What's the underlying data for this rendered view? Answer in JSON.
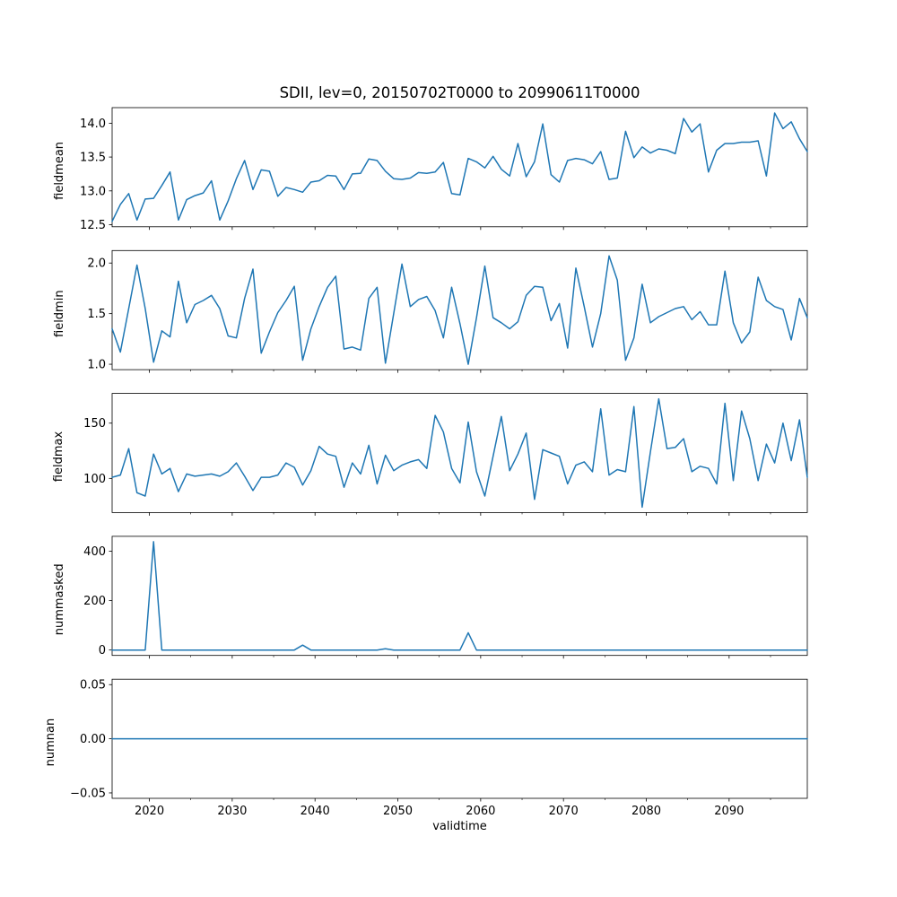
{
  "title": "SDII, lev=0, 20150702T0000 to 20990611T0000",
  "xlabel": "validtime",
  "line_color": "#1f77b4",
  "axis_color": "#000000",
  "background_color": "#ffffff",
  "xlim": [
    2015.5,
    2099.44
  ],
  "x_major_tick_values": [
    2020,
    2030,
    2040,
    2050,
    2060,
    2070,
    2080,
    2090
  ],
  "x_major_tick_labels": [
    "2020",
    "2030",
    "2040",
    "2050",
    "2060",
    "2070",
    "2080",
    "2090"
  ],
  "x_minor_tick_values": [
    2025,
    2035,
    2045,
    2055,
    2065,
    2075,
    2085,
    2095
  ],
  "x": [
    2015.5,
    2016.5,
    2017.5,
    2018.5,
    2019.5,
    2020.5,
    2021.5,
    2022.5,
    2023.5,
    2024.5,
    2025.5,
    2026.5,
    2027.5,
    2028.5,
    2029.5,
    2030.5,
    2031.5,
    2032.5,
    2033.5,
    2034.5,
    2035.5,
    2036.5,
    2037.5,
    2038.5,
    2039.5,
    2040.5,
    2041.5,
    2042.5,
    2043.5,
    2044.5,
    2045.5,
    2046.5,
    2047.5,
    2048.5,
    2049.5,
    2050.5,
    2051.5,
    2052.5,
    2053.5,
    2054.5,
    2055.5,
    2056.5,
    2057.5,
    2058.5,
    2059.5,
    2060.5,
    2061.5,
    2062.5,
    2063.5,
    2064.5,
    2065.5,
    2066.5,
    2067.5,
    2068.5,
    2069.5,
    2070.5,
    2071.5,
    2072.5,
    2073.5,
    2074.5,
    2075.5,
    2076.5,
    2077.5,
    2078.5,
    2079.5,
    2080.5,
    2081.5,
    2082.5,
    2083.5,
    2084.5,
    2085.5,
    2086.5,
    2087.5,
    2088.5,
    2089.5,
    2090.5,
    2091.5,
    2092.5,
    2093.5,
    2094.5,
    2095.5,
    2096.5,
    2097.5,
    2098.5,
    2099.44
  ],
  "chart_data": [
    {
      "type": "line",
      "ylabel": "fieldmean",
      "ytick_values": [
        12.5,
        13.0,
        13.5,
        14.0
      ],
      "ytick_labels": [
        "12.5",
        "13.0",
        "13.5",
        "14.0"
      ],
      "values": [
        12.55,
        12.8,
        12.96,
        12.57,
        12.88,
        12.89,
        13.08,
        13.28,
        12.57,
        12.87,
        12.93,
        12.97,
        13.15,
        12.57,
        12.85,
        13.18,
        13.45,
        13.02,
        13.31,
        13.29,
        12.92,
        13.05,
        13.02,
        12.98,
        13.13,
        13.15,
        13.23,
        13.22,
        13.02,
        13.25,
        13.26,
        13.47,
        13.45,
        13.29,
        13.18,
        13.17,
        13.19,
        13.27,
        13.26,
        13.28,
        13.42,
        12.96,
        12.94,
        13.48,
        13.43,
        13.34,
        13.51,
        13.32,
        13.22,
        13.7,
        13.21,
        13.43,
        13.99,
        13.24,
        13.13,
        13.45,
        13.48,
        13.46,
        13.4,
        13.58,
        13.17,
        13.19,
        13.88,
        13.49,
        13.65,
        13.56,
        13.62,
        13.6,
        13.55,
        14.07,
        13.87,
        13.99,
        13.28,
        13.6,
        13.7,
        13.7,
        13.72,
        13.72,
        13.74,
        13.22,
        14.15,
        13.92,
        14.02,
        13.77,
        13.58
      ]
    },
    {
      "type": "line",
      "ylabel": "fieldmin",
      "ytick_values": [
        1.0,
        1.5,
        2.0
      ],
      "ytick_labels": [
        "1.0",
        "1.5",
        "2.0"
      ],
      "values": [
        1.35,
        1.12,
        1.55,
        1.98,
        1.55,
        1.02,
        1.33,
        1.27,
        1.82,
        1.41,
        1.59,
        1.63,
        1.68,
        1.55,
        1.28,
        1.26,
        1.65,
        1.94,
        1.11,
        1.32,
        1.51,
        1.63,
        1.77,
        1.04,
        1.35,
        1.57,
        1.76,
        1.87,
        1.15,
        1.17,
        1.14,
        1.65,
        1.76,
        1.01,
        1.5,
        1.99,
        1.57,
        1.64,
        1.67,
        1.53,
        1.26,
        1.76,
        1.4,
        1.0,
        1.46,
        1.97,
        1.46,
        1.41,
        1.35,
        1.42,
        1.68,
        1.77,
        1.76,
        1.43,
        1.6,
        1.16,
        1.95,
        1.57,
        1.17,
        1.5,
        2.07,
        1.83,
        1.04,
        1.26,
        1.79,
        1.41,
        1.47,
        1.51,
        1.55,
        1.57,
        1.44,
        1.52,
        1.39,
        1.39,
        1.92,
        1.41,
        1.21,
        1.32,
        1.86,
        1.63,
        1.57,
        1.54,
        1.24,
        1.65,
        1.46
      ]
    },
    {
      "type": "line",
      "ylabel": "fieldmax",
      "ytick_values": [
        100,
        150
      ],
      "ytick_labels": [
        "100",
        "150"
      ],
      "values": [
        101,
        103,
        127,
        87,
        84,
        122,
        104,
        109,
        88,
        104,
        102,
        103,
        104,
        102,
        106,
        114,
        102,
        89,
        101,
        101,
        103,
        114,
        110,
        94,
        107,
        129,
        122,
        120,
        92,
        114,
        104,
        130,
        95,
        121,
        107,
        112,
        115,
        117,
        109,
        157,
        142,
        109,
        96,
        151,
        106,
        84,
        120,
        156,
        107,
        122,
        141,
        81,
        126,
        123,
        120,
        95,
        112,
        115,
        106,
        163,
        103,
        108,
        106,
        165,
        74,
        124,
        172,
        127,
        128,
        136,
        106,
        111,
        109,
        95,
        168,
        98,
        161,
        136,
        98,
        131,
        114,
        150,
        116,
        153,
        101
      ]
    },
    {
      "type": "line",
      "ylabel": "nummasked",
      "ytick_values": [
        0,
        200,
        400
      ],
      "ytick_labels": [
        "0",
        "200",
        "400"
      ],
      "values": [
        0,
        0,
        0,
        0,
        0,
        438,
        0,
        0,
        0,
        0,
        0,
        0,
        0,
        0,
        0,
        0,
        0,
        0,
        0,
        0,
        0,
        0,
        0,
        20,
        0,
        0,
        0,
        0,
        0,
        0,
        0,
        0,
        0,
        5,
        0,
        0,
        0,
        0,
        0,
        0,
        0,
        0,
        0,
        70,
        0,
        0,
        0,
        0,
        0,
        0,
        0,
        0,
        0,
        0,
        0,
        0,
        0,
        0,
        0,
        0,
        0,
        0,
        0,
        0,
        0,
        0,
        0,
        0,
        0,
        0,
        0,
        0,
        0,
        0,
        0,
        0,
        0,
        0,
        0,
        0,
        0,
        0,
        0,
        0,
        0
      ]
    },
    {
      "type": "line",
      "ylabel": "numnan",
      "ytick_values": [
        -0.05,
        0.0,
        0.05
      ],
      "ytick_labels": [
        "−0.05",
        "0.00",
        "0.05"
      ],
      "values": [
        0,
        0,
        0,
        0,
        0,
        0,
        0,
        0,
        0,
        0,
        0,
        0,
        0,
        0,
        0,
        0,
        0,
        0,
        0,
        0,
        0,
        0,
        0,
        0,
        0,
        0,
        0,
        0,
        0,
        0,
        0,
        0,
        0,
        0,
        0,
        0,
        0,
        0,
        0,
        0,
        0,
        0,
        0,
        0,
        0,
        0,
        0,
        0,
        0,
        0,
        0,
        0,
        0,
        0,
        0,
        0,
        0,
        0,
        0,
        0,
        0,
        0,
        0,
        0,
        0,
        0,
        0,
        0,
        0,
        0,
        0,
        0,
        0,
        0,
        0,
        0,
        0,
        0,
        0,
        0,
        0,
        0,
        0,
        0,
        0
      ]
    }
  ]
}
